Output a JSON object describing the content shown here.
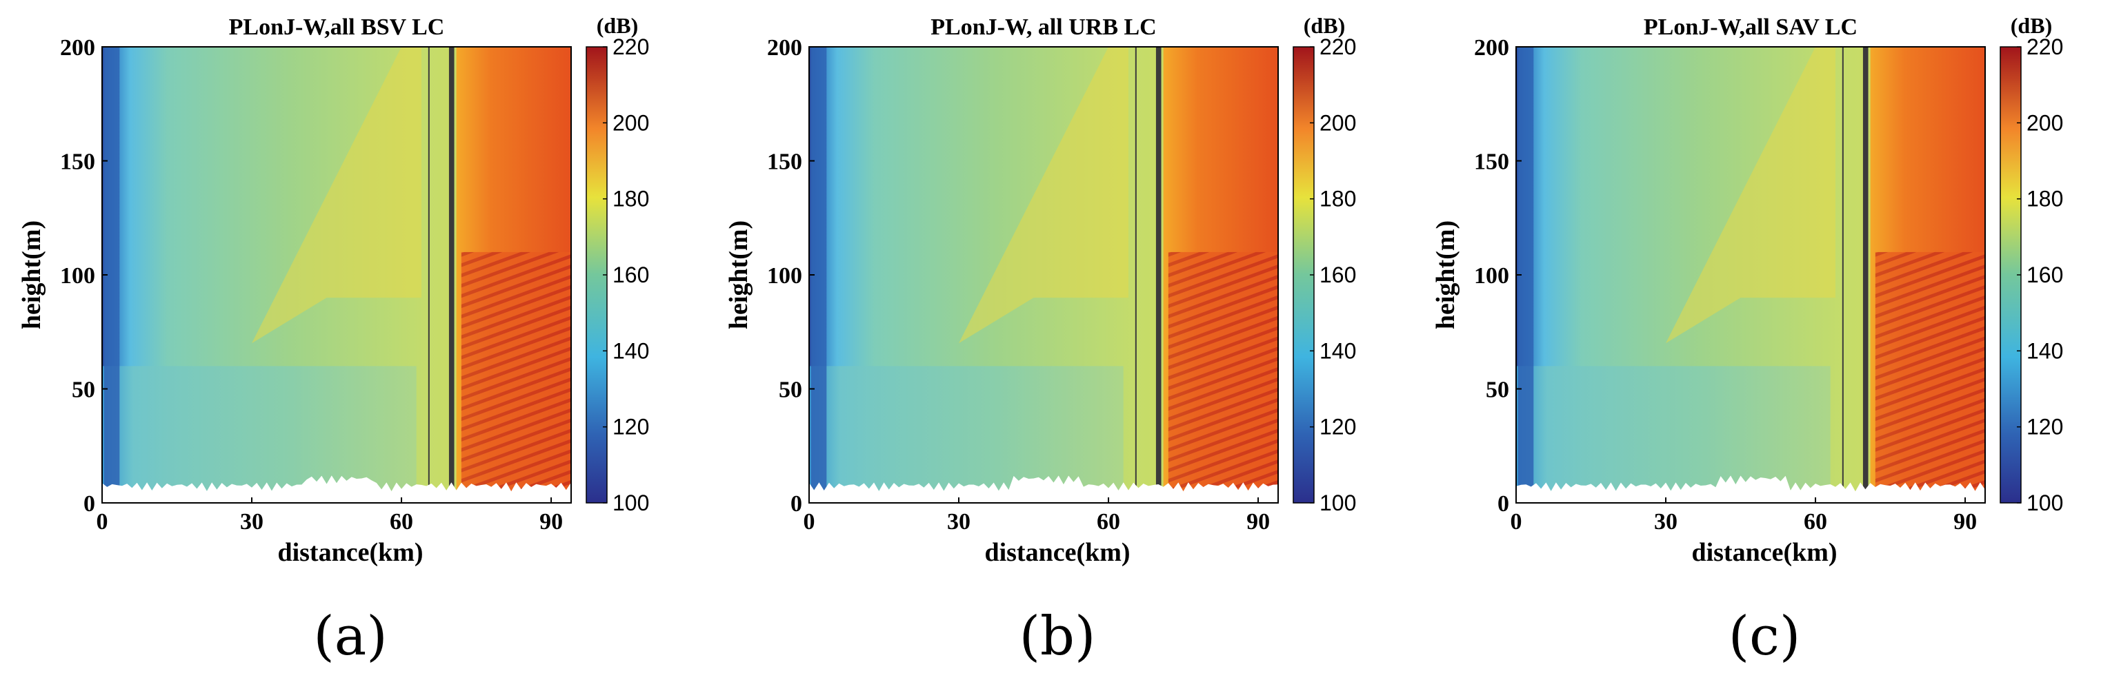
{
  "chart_data": [
    {
      "type": "heatmap",
      "title": "PLonJ-W,all BSV LC",
      "xlabel": "distance(km)",
      "ylabel": "height(m)",
      "xlim": [
        0,
        94
      ],
      "ylim": [
        0,
        200
      ],
      "xticks": [
        "0",
        "30",
        "60",
        "90"
      ],
      "yticks": [
        "0",
        "50",
        "100",
        "150",
        "200"
      ],
      "colorbar": {
        "unit": "(dB)",
        "range": [
          100,
          220
        ],
        "ticks": [
          "100",
          "120",
          "140",
          "160",
          "180",
          "200",
          "220"
        ]
      },
      "caption": "(a)"
    },
    {
      "type": "heatmap",
      "title": "PLonJ-W, all URB LC",
      "xlabel": "distance(km)",
      "ylabel": "height(m)",
      "xlim": [
        0,
        94
      ],
      "ylim": [
        0,
        200
      ],
      "xticks": [
        "0",
        "30",
        "60",
        "90"
      ],
      "yticks": [
        "0",
        "50",
        "100",
        "150",
        "200"
      ],
      "colorbar": {
        "unit": "(dB)",
        "range": [
          100,
          220
        ],
        "ticks": [
          "100",
          "120",
          "140",
          "160",
          "180",
          "200",
          "220"
        ]
      },
      "caption": "(b)"
    },
    {
      "type": "heatmap",
      "title": "PLonJ-W,all SAV LC",
      "xlabel": "distance(km)",
      "ylabel": "height(m)",
      "xlim": [
        0,
        94
      ],
      "ylim": [
        0,
        200
      ],
      "xticks": [
        "0",
        "30",
        "60",
        "90"
      ],
      "yticks": [
        "0",
        "50",
        "100",
        "150",
        "200"
      ],
      "colorbar": {
        "unit": "(dB)",
        "range": [
          100,
          220
        ],
        "ticks": [
          "100",
          "120",
          "140",
          "160",
          "180",
          "200",
          "220"
        ]
      },
      "caption": "(c)"
    }
  ]
}
